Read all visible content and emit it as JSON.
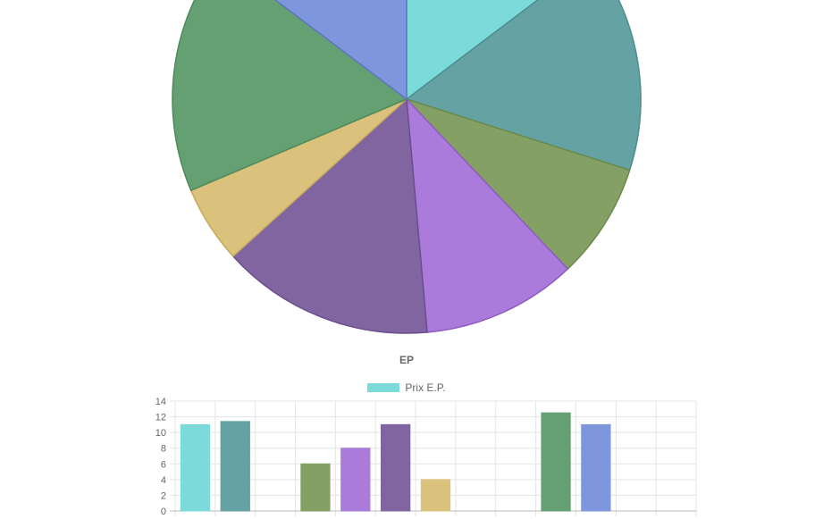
{
  "chart_data": [
    {
      "type": "pie",
      "title": "",
      "values": [
        11,
        11.4,
        6,
        8,
        11,
        4,
        12.5,
        11
      ],
      "colors": [
        "#7ddadb",
        "#64a2a3",
        "#84a065",
        "#ab7bdb",
        "#8065a0",
        "#dac27d",
        "#65a072",
        "#7e96db"
      ],
      "border_colors": [
        "#5cbfc0",
        "#4c8e8f",
        "#6b8a4c",
        "#8f5bc4",
        "#6a4f8c",
        "#c4a95c",
        "#4c8a5c",
        "#5c77c4"
      ],
      "start_angle_deg": -90
    },
    {
      "type": "bar",
      "title": "EP",
      "legend": {
        "label": "Prix E.P.",
        "color": "#7ddadb",
        "position": "top"
      },
      "categories_count": 13,
      "values": [
        11,
        11.4,
        null,
        6,
        8,
        11,
        4,
        null,
        null,
        12.5,
        11,
        null,
        null
      ],
      "colors": [
        "#7ddadb",
        "#64a2a3",
        "#cccccc",
        "#84a065",
        "#ab7bdb",
        "#8065a0",
        "#dac27d",
        "#cccccc",
        "#cccccc",
        "#65a072",
        "#7e96db",
        "#cccccc",
        "#cccccc"
      ],
      "yticks": [
        "0",
        "2",
        "4",
        "6",
        "8",
        "10",
        "12",
        "14"
      ],
      "ylim": [
        0,
        14
      ],
      "grid": true
    }
  ]
}
